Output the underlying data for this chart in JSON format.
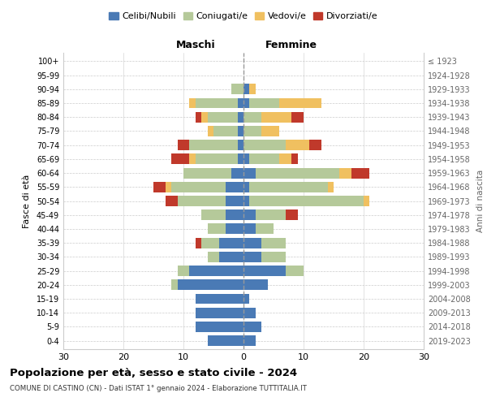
{
  "age_groups": [
    "0-4",
    "5-9",
    "10-14",
    "15-19",
    "20-24",
    "25-29",
    "30-34",
    "35-39",
    "40-44",
    "45-49",
    "50-54",
    "55-59",
    "60-64",
    "65-69",
    "70-74",
    "75-79",
    "80-84",
    "85-89",
    "90-94",
    "95-99",
    "100+"
  ],
  "birth_years": [
    "2019-2023",
    "2014-2018",
    "2009-2013",
    "2004-2008",
    "1999-2003",
    "1994-1998",
    "1989-1993",
    "1984-1988",
    "1979-1983",
    "1974-1978",
    "1969-1973",
    "1964-1968",
    "1959-1963",
    "1954-1958",
    "1949-1953",
    "1944-1948",
    "1939-1943",
    "1934-1938",
    "1929-1933",
    "1924-1928",
    "≤ 1923"
  ],
  "maschi": {
    "celibi": [
      6,
      8,
      8,
      8,
      11,
      9,
      4,
      4,
      3,
      3,
      3,
      3,
      2,
      1,
      1,
      1,
      1,
      1,
      0,
      0,
      0
    ],
    "coniugati": [
      0,
      0,
      0,
      0,
      1,
      2,
      2,
      3,
      3,
      4,
      8,
      9,
      8,
      7,
      8,
      4,
      5,
      7,
      2,
      0,
      0
    ],
    "vedovi": [
      0,
      0,
      0,
      0,
      0,
      0,
      0,
      0,
      0,
      0,
      0,
      1,
      0,
      1,
      0,
      1,
      1,
      1,
      0,
      0,
      0
    ],
    "divorziati": [
      0,
      0,
      0,
      0,
      0,
      0,
      0,
      1,
      0,
      0,
      2,
      2,
      0,
      3,
      2,
      0,
      1,
      0,
      0,
      0,
      0
    ]
  },
  "femmine": {
    "nubili": [
      2,
      3,
      2,
      1,
      4,
      7,
      3,
      3,
      2,
      2,
      1,
      1,
      2,
      1,
      0,
      0,
      0,
      1,
      1,
      0,
      0
    ],
    "coniugate": [
      0,
      0,
      0,
      0,
      0,
      3,
      4,
      4,
      3,
      5,
      19,
      13,
      14,
      5,
      7,
      3,
      3,
      5,
      0,
      0,
      0
    ],
    "vedove": [
      0,
      0,
      0,
      0,
      0,
      0,
      0,
      0,
      0,
      0,
      1,
      1,
      2,
      2,
      4,
      3,
      5,
      7,
      1,
      0,
      0
    ],
    "divorziate": [
      0,
      0,
      0,
      0,
      0,
      0,
      0,
      0,
      0,
      2,
      0,
      0,
      3,
      1,
      2,
      0,
      2,
      0,
      0,
      0,
      0
    ]
  },
  "colors": {
    "celibi": "#4a7ab5",
    "coniugati": "#b5c99a",
    "vedovi": "#f0c060",
    "divorziati": "#c0392b"
  },
  "xlim": 30,
  "title": "Popolazione per età, sesso e stato civile - 2024",
  "subtitle": "COMUNE DI CASTINO (CN) - Dati ISTAT 1° gennaio 2024 - Elaborazione TUTTITALIA.IT",
  "ylabel_left": "Fasce di età",
  "ylabel_right": "Anni di nascita",
  "xlabel_left": "Maschi",
  "xlabel_right": "Femmine"
}
